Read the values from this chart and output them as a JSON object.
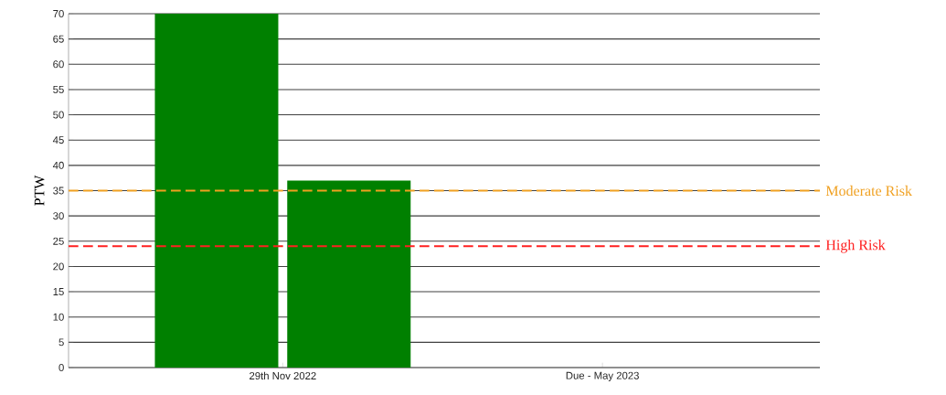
{
  "chart_data": {
    "type": "bar",
    "ylabel": "PTW",
    "categories": [
      "29th Nov 2022",
      "Due - May 2023"
    ],
    "series": [
      {
        "color": "#008000",
        "values": [
          70,
          null
        ]
      },
      {
        "color": "#008000",
        "values": [
          37,
          null
        ]
      }
    ],
    "ylim": [
      0,
      70
    ],
    "yticks": [
      0,
      5,
      10,
      15,
      20,
      25,
      30,
      35,
      40,
      45,
      50,
      55,
      60,
      65,
      70
    ],
    "grid": "y",
    "ref_lines": [
      {
        "axis": "y",
        "value": 35,
        "label": "Moderate Risk",
        "color": "#f0a020",
        "line_style": "dashed"
      },
      {
        "axis": "y",
        "value": 24,
        "label": "High Risk",
        "color": "#ff2020",
        "line_style": "dashed"
      }
    ]
  }
}
